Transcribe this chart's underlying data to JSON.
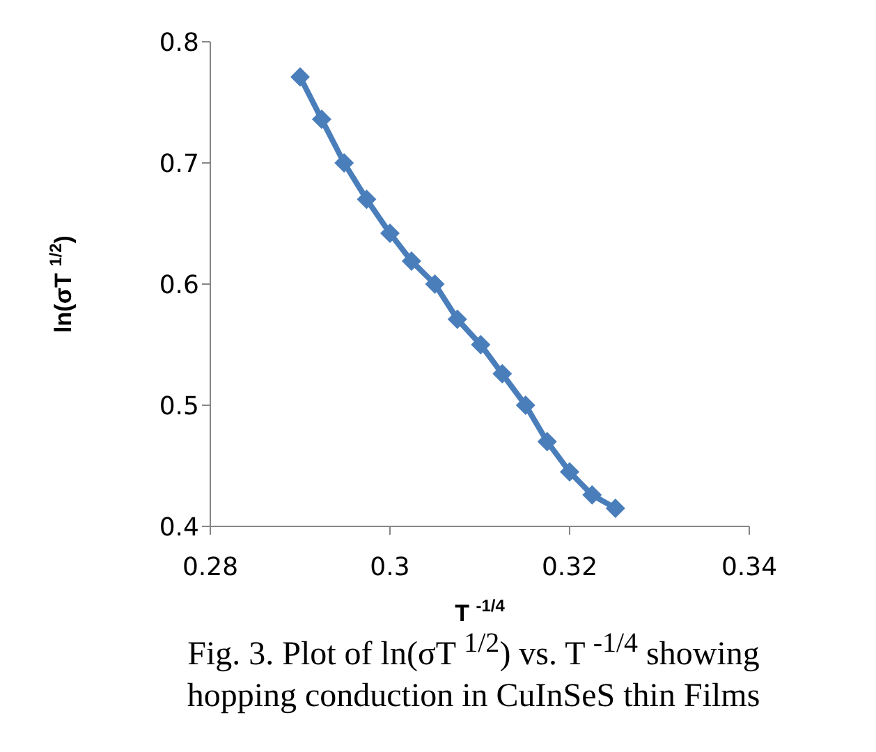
{
  "chart_data": {
    "type": "line",
    "xlabel": "T $^{-1/4}$",
    "ylabel": "ln(σT $^{1/2}$)",
    "annotations": [
      "Fig. 3. Plot of ln(σT $^{1/2}$) vs. T $^{-1/4}$ showing hopping conduction in CuInSeS thin Films"
    ],
    "x": [
      0.29,
      0.2924,
      0.2949,
      0.2974,
      0.3,
      0.3024,
      0.305,
      0.3075,
      0.3101,
      0.3125,
      0.3151,
      0.3175,
      0.32,
      0.3225,
      0.3251
    ],
    "series": [
      {
        "color": "#4a7ebb",
        "values": [
          0.771,
          0.736,
          0.7,
          0.67,
          0.642,
          0.619,
          0.6,
          0.571,
          0.55,
          0.526,
          0.5,
          0.47,
          0.445,
          0.426,
          0.415
        ]
      }
    ],
    "xlim": [
      0.28,
      0.34
    ],
    "xticks": [
      0.28,
      0.3,
      0.32,
      0.34
    ],
    "ylim": [
      0.4,
      0.8
    ],
    "yticks": [
      0.4,
      0.5,
      0.6,
      0.7,
      0.8
    ],
    "grid": false,
    "legend": false,
    "marker": "diamond",
    "line_style": "solid"
  }
}
